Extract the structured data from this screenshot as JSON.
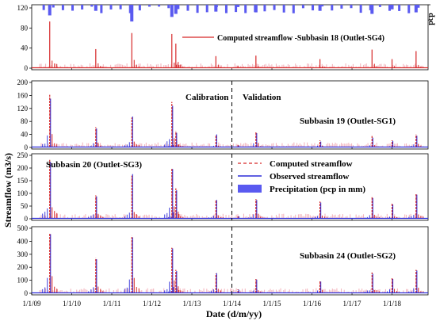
{
  "figure": {
    "y_axis_title": "Streamflow (m3/s)",
    "x_axis_title": "Date (d/m/yy)",
    "x_tick_labels": [
      "1/1/09",
      "1/1/10",
      "1/1/11",
      "1/1/12",
      "1/1/13",
      "1/1/14",
      "1/1/15",
      "1/1/16",
      "1/1/17",
      "1/1/18"
    ],
    "calibration_label": "Calibration",
    "validation_label": "Validation",
    "legend": {
      "computed": "Computed streamflow",
      "observed": "Observed streamflow",
      "precipitation": "Precipitation (pcp in mm)"
    },
    "colors": {
      "computed": "#d62728",
      "observed": "#2b2bd8",
      "precipitation": "#5a5af0",
      "hydro_fill": "#f3b6bf",
      "divider": "#000000"
    }
  },
  "chart_data": [
    {
      "type": "line",
      "subtitle": "Computed streamflow -Subbasin 18 (Outlet-SG4)",
      "ylabel": "",
      "right_ylabel": "pcp",
      "ylim": [
        0,
        120
      ],
      "yticks": [
        0,
        40,
        80,
        120
      ],
      "pcp_ticks": [
        0,
        20
      ],
      "x": [
        2009.45,
        2010.6,
        2011.5,
        2012.5,
        2012.6,
        2013.6,
        2014.15,
        2014.6,
        2016.2,
        2017.5,
        2018.0,
        2018.6
      ],
      "series": [
        {
          "name": "Computed streamflow",
          "values": [
            93,
            38,
            70,
            68,
            49,
            24,
            5,
            25,
            18,
            37,
            18,
            34
          ]
        }
      ],
      "precipitation_mm": [
        14,
        8,
        22,
        16,
        12,
        9,
        3,
        10,
        8,
        12,
        6,
        10
      ],
      "show_calibration_split": false
    },
    {
      "type": "line",
      "subtitle": "Subbasin 19 (Outlet-SG1)",
      "ylim": [
        0,
        200
      ],
      "yticks": [
        0,
        40,
        80,
        120,
        160,
        200
      ],
      "x": [
        2009.45,
        2010.6,
        2011.5,
        2012.5,
        2012.6,
        2013.6,
        2014.15,
        2014.6,
        2016.2,
        2017.5,
        2018.0,
        2018.6
      ],
      "series": [
        {
          "name": "Computed streamflow",
          "values": [
            162,
            62,
            92,
            140,
            50,
            36,
            8,
            48,
            22,
            35,
            22,
            40
          ]
        },
        {
          "name": "Observed streamflow",
          "values": [
            150,
            58,
            95,
            128,
            45,
            40,
            6,
            44,
            18,
            30,
            20,
            36
          ]
        }
      ],
      "show_calibration_split": true
    },
    {
      "type": "line",
      "subtitle": "Subbasin 20 (Outlet-SG3)",
      "ylim": [
        0,
        250
      ],
      "yticks": [
        0,
        50,
        100,
        150,
        200,
        250
      ],
      "x": [
        2009.45,
        2010.6,
        2011.5,
        2012.5,
        2012.6,
        2013.6,
        2014.15,
        2014.6,
        2016.2,
        2017.5,
        2018.0,
        2018.6
      ],
      "series": [
        {
          "name": "Computed streamflow",
          "values": [
            232,
            92,
            170,
            200,
            120,
            72,
            12,
            78,
            68,
            88,
            60,
            100
          ]
        },
        {
          "name": "Observed streamflow",
          "values": [
            224,
            88,
            176,
            196,
            112,
            74,
            10,
            74,
            64,
            82,
            56,
            95
          ]
        }
      ],
      "show_calibration_split": true
    },
    {
      "type": "line",
      "subtitle": "Subbasin 24 (Outlet-SG2)",
      "ylim": [
        0,
        500
      ],
      "yticks": [
        0,
        100,
        200,
        300,
        400,
        500
      ],
      "x": [
        2009.45,
        2010.6,
        2011.5,
        2012.5,
        2012.6,
        2013.6,
        2014.15,
        2014.6,
        2016.2,
        2017.5,
        2018.0,
        2018.6
      ],
      "series": [
        {
          "name": "Computed streamflow",
          "values": [
            458,
            270,
            440,
            350,
            180,
            150,
            30,
            110,
            95,
            160,
            120,
            180
          ]
        },
        {
          "name": "Observed streamflow",
          "values": [
            455,
            262,
            430,
            345,
            170,
            155,
            28,
            105,
            90,
            150,
            110,
            175
          ]
        }
      ],
      "show_calibration_split": true
    }
  ]
}
